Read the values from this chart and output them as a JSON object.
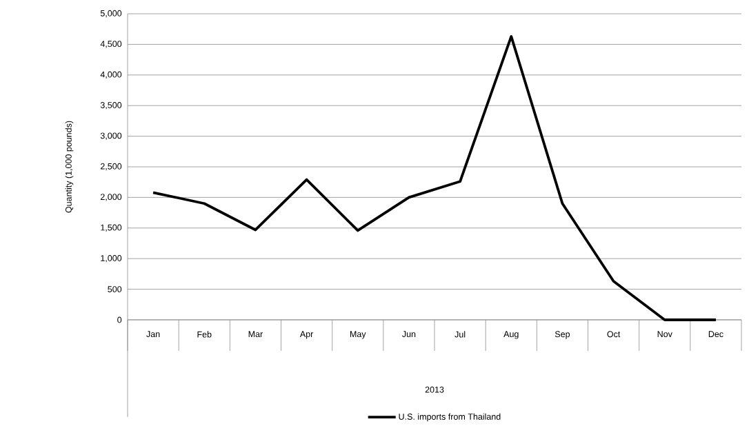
{
  "chart_data": {
    "type": "line",
    "annotations": [
      "2013"
    ],
    "ylabel": "Quantity  (1,000 pounds)",
    "categories": [
      "Jan",
      "Feb",
      "Mar",
      "Apr",
      "May",
      "Jun",
      "Jul",
      "Aug",
      "Sep",
      "Oct",
      "Nov",
      "Dec"
    ],
    "series": [
      {
        "name": "U.S. imports from Thailand",
        "color": "#000000",
        "values": [
          2080,
          1900,
          1470,
          2290,
          1460,
          2000,
          2260,
          4630,
          1900,
          630,
          0,
          0
        ]
      }
    ],
    "ylim": [
      0,
      5000
    ],
    "yticks": [
      0,
      500,
      {
        "value": 1000,
        "label": "1,000"
      },
      {
        "value": 1500,
        "label": "1,500"
      },
      {
        "value": 2000,
        "label": "2,000"
      },
      {
        "value": 2500,
        "label": "2,500"
      },
      {
        "value": 3000,
        "label": "3,000"
      },
      {
        "value": 3500,
        "label": "3,500"
      },
      {
        "value": 4000,
        "label": "4,000"
      },
      {
        "value": 4500,
        "label": "4,500"
      },
      {
        "value": 5000,
        "label": "5,000"
      }
    ],
    "grid": "y",
    "legend": "bottom",
    "marker": "none",
    "line_style": "solid"
  }
}
